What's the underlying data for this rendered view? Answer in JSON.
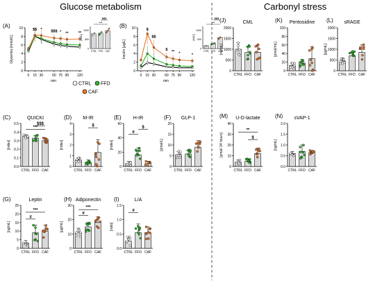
{
  "sections": {
    "left_title": "Glucose metabolism",
    "right_title": "Carbonyl stress"
  },
  "colors": {
    "CTRL": "#ffffff",
    "FFD": "#2fb52f",
    "CAF": "#e8772b",
    "axis": "#000000",
    "bar": "#d9d9d9",
    "divider": "#555555"
  },
  "legend": {
    "items": [
      {
        "group": "CTRL",
        "label": "CTRL"
      },
      {
        "group": "FFD",
        "label": "FFD"
      },
      {
        "group": "CAF",
        "label": "CAF"
      }
    ]
  },
  "chart_data": [
    {
      "id": "A",
      "type": "line",
      "panel_label": "(A)",
      "title": "",
      "ylabel": "Glycemia [mmol/L]",
      "xlabel": "min",
      "x": [
        0,
        15,
        30,
        60,
        75,
        90,
        120
      ],
      "x_tick_labels": [
        "0",
        "15",
        "30",
        "60",
        "75",
        "90",
        "120"
      ],
      "yticks": [
        0,
        2,
        4,
        6,
        8,
        10
      ],
      "ylim": [
        0,
        10
      ],
      "y_break": true,
      "series": [
        {
          "name": "CTRL",
          "values": [
            4.5,
            8.0,
            7.3,
            6.2,
            5.9,
            5.7,
            5.5
          ],
          "error": [
            0.3,
            1.2,
            1.0,
            0.6,
            0.5,
            0.5,
            0.4
          ]
        },
        {
          "name": "FFD",
          "values": [
            4.8,
            8.1,
            7.5,
            6.6,
            6.3,
            6.1,
            6.0
          ],
          "error": [
            0.3,
            1.3,
            1.1,
            0.7,
            0.6,
            0.5,
            0.5
          ]
        },
        {
          "name": "CAF",
          "values": [
            5.2,
            8.3,
            8.2,
            7.6,
            7.5,
            7.3,
            7.4
          ],
          "error": [
            0.4,
            1.5,
            1.3,
            0.9,
            0.8,
            0.7,
            0.7
          ]
        }
      ],
      "annotations": [
        "$$",
        "*",
        "$$$",
        "*",
        "**",
        "**"
      ],
      "inset": {
        "type": "bar",
        "ylabel": "[AUC]",
        "categories": [
          "CTRL",
          "FFD",
          "CAF"
        ],
        "values": [
          800,
          840,
          960
        ],
        "ylim": [
          0,
          1200
        ],
        "yticks": [
          0,
          500,
          1000
        ],
        "annotations": [
          "$$$",
          "***"
        ]
      }
    },
    {
      "id": "B",
      "type": "line",
      "panel_label": "(B)",
      "title": "",
      "ylabel": "Insulin [μg/L]",
      "xlabel": "min",
      "x": [
        0,
        15,
        30,
        60,
        75,
        90,
        120
      ],
      "x_tick_labels": [
        "0",
        "15",
        "30",
        "60",
        "75",
        "90",
        "120"
      ],
      "yticks": [
        0,
        2,
        4,
        6,
        8,
        10
      ],
      "ylim": [
        0,
        10
      ],
      "series": [
        {
          "name": "CTRL",
          "values": [
            0.7,
            1.9,
            1.6,
            0.9,
            0.8,
            0.7,
            0.7
          ],
          "error": [
            0.2,
            0.6,
            0.5,
            0.3,
            0.2,
            0.2,
            0.2
          ]
        },
        {
          "name": "FFD",
          "values": [
            1.2,
            4.0,
            2.8,
            1.5,
            1.3,
            1.1,
            1.0
          ],
          "error": [
            0.4,
            1.8,
            1.2,
            0.6,
            0.5,
            0.4,
            0.4
          ]
        },
        {
          "name": "CAF",
          "values": [
            2.5,
            8.6,
            5.4,
            3.2,
            2.8,
            2.5,
            2.3
          ],
          "error": [
            0.6,
            2.5,
            1.8,
            1.0,
            0.9,
            0.8,
            0.7
          ]
        }
      ],
      "annotations": [
        "$",
        "$$",
        "$",
        "**",
        "*",
        "*"
      ],
      "inset": {
        "type": "bar",
        "ylabel": "[AUC]",
        "categories": [
          "CTRL",
          "FFD",
          "CAF"
        ],
        "values": [
          150,
          260,
          600
        ],
        "ylim": [
          0,
          1200
        ],
        "yticks": [
          0,
          500,
          1000
        ],
        "annotations": [
          "$$$",
          "***"
        ]
      }
    },
    {
      "id": "C",
      "type": "bar",
      "panel_label": "(C)",
      "title": "QUICKI",
      "ylabel": "[index]",
      "categories": [
        "CTRL",
        "FFD",
        "CAF"
      ],
      "values": [
        0.35,
        0.33,
        0.3
      ],
      "error": [
        0.02,
        0.03,
        0.03
      ],
      "ylim": [
        0,
        0.5
      ],
      "yticks": [
        0.0,
        0.1,
        0.2,
        0.3,
        0.4,
        0.5
      ],
      "ytick_labels": [
        "0.0",
        "0.1",
        "0.2",
        "0.3",
        "0.4",
        "0.5"
      ],
      "sig": [
        {
          "from": 0,
          "to": 2,
          "label": "***",
          "y": 0.43
        },
        {
          "from": 1,
          "to": 2,
          "label": "$$$",
          "y": 0.47
        }
      ]
    },
    {
      "id": "D",
      "type": "bar",
      "panel_label": "(D)",
      "title": "M-IR",
      "ylabel": "[index]",
      "categories": [
        "CTRL",
        "FFD",
        "CAF"
      ],
      "values": [
        0.6,
        0.4,
        1.3
      ],
      "error": [
        0.2,
        0.2,
        1.2
      ],
      "ylim": [
        0,
        4
      ],
      "yticks": [
        0,
        1,
        2,
        3,
        4
      ],
      "ytick_labels": [
        "0",
        "1",
        "2",
        "3",
        "4"
      ],
      "sig": [
        {
          "from": 1,
          "to": 2,
          "label": "$",
          "y": 3.6
        }
      ]
    },
    {
      "id": "E",
      "type": "bar",
      "panel_label": "(E)",
      "title": "H-IR",
      "ylabel": "[index]",
      "categories": [
        "CTRL",
        "FFD",
        "CAF"
      ],
      "values": [
        4,
        16,
        4
      ],
      "error": [
        3,
        10,
        3
      ],
      "ylim": [
        0,
        60
      ],
      "yticks": [
        0,
        20,
        40,
        60
      ],
      "ytick_labels": [
        "0",
        "20",
        "40",
        "60"
      ],
      "sig": [
        {
          "from": 0,
          "to": 1,
          "label": "#",
          "y": 45
        },
        {
          "from": 1,
          "to": 2,
          "label": "$",
          "y": 52
        }
      ]
    },
    {
      "id": "F",
      "type": "bar",
      "panel_label": "(F)",
      "title": "GLP-1",
      "ylabel": "[pmol/L]",
      "categories": [
        "CTRL",
        "FFD",
        "CAF"
      ],
      "values": [
        5.5,
        5.8,
        9.0
      ],
      "error": [
        1.5,
        1.8,
        3.0
      ],
      "ylim": [
        0,
        20
      ],
      "yticks": [
        0,
        5,
        10,
        15,
        20
      ],
      "ytick_labels": [
        "0",
        "5",
        "10",
        "15",
        "20"
      ],
      "sig": []
    },
    {
      "id": "G",
      "type": "bar",
      "panel_label": "(G)",
      "title": "Leptin",
      "ylabel": "[ng/mL]",
      "categories": [
        "CTRL",
        "FFD",
        "CAF"
      ],
      "values": [
        3,
        9,
        10
      ],
      "error": [
        1.5,
        4.5,
        3.5
      ],
      "ylim": [
        0,
        25
      ],
      "yticks": [
        0,
        5,
        10,
        15,
        20,
        25
      ],
      "ytick_labels": [
        "0",
        "5",
        "10",
        "15",
        "20",
        "25"
      ],
      "sig": [
        {
          "from": 0,
          "to": 1,
          "label": "#",
          "y": 17
        },
        {
          "from": 0,
          "to": 2,
          "label": "***",
          "y": 21
        }
      ]
    },
    {
      "id": "H",
      "type": "bar",
      "panel_label": "(H)",
      "title": "Adiponectin",
      "ylabel": "[μg/mL]",
      "categories": [
        "CTRL",
        "FFD",
        "CAF"
      ],
      "values": [
        11,
        15,
        18
      ],
      "error": [
        3,
        3,
        4
      ],
      "ylim": [
        0,
        30
      ],
      "yticks": [
        0,
        10,
        20,
        30
      ],
      "ytick_labels": [
        "0",
        "10",
        "20",
        "30"
      ],
      "sig": [
        {
          "from": 0,
          "to": 1,
          "label": "#",
          "y": 23
        },
        {
          "from": 0,
          "to": 2,
          "label": "***",
          "y": 27
        }
      ]
    },
    {
      "id": "I",
      "type": "bar",
      "panel_label": "(I)",
      "title": "L/A",
      "ylabel": "[ratio]",
      "categories": [
        "CTRL",
        "FFD",
        "CAF"
      ],
      "values": [
        0.25,
        0.55,
        0.55
      ],
      "error": [
        0.15,
        0.3,
        0.2
      ],
      "ylim": [
        0,
        1.5
      ],
      "yticks": [
        0.0,
        0.5,
        1.0,
        1.5
      ],
      "ytick_labels": [
        "0.0",
        "0.5",
        "1.0",
        "1.5"
      ],
      "sig": [
        {
          "from": 0,
          "to": 1,
          "label": "#",
          "y": 1.25
        }
      ]
    },
    {
      "id": "J",
      "type": "bar",
      "panel_label": "(J)",
      "title": "CML",
      "ylabel": "[ng/mL]",
      "categories": [
        "CTRL",
        "FFD",
        "CAF"
      ],
      "values": [
        1000,
        850,
        850
      ],
      "error": [
        300,
        300,
        350
      ],
      "ylim": [
        0,
        2000
      ],
      "yticks": [
        0,
        500,
        1000,
        1500,
        2000
      ],
      "ytick_labels": [
        "0",
        "500",
        "1000",
        "1500",
        "2000"
      ],
      "sig": []
    },
    {
      "id": "K",
      "type": "bar",
      "panel_label": "(K)",
      "title": "Pentosidine",
      "ylabel": "[pmol/mL]",
      "categories": [
        "CTRL",
        "FFD",
        "CAF"
      ],
      "values": [
        12,
        18,
        28
      ],
      "error": [
        6,
        8,
        28
      ],
      "ylim": [
        0,
        100
      ],
      "yticks": [
        0,
        20,
        40,
        60,
        80,
        100
      ],
      "ytick_labels": [
        "0",
        "20",
        "40",
        "60",
        "80",
        "100"
      ],
      "sig": []
    },
    {
      "id": "L",
      "type": "bar",
      "panel_label": "(L)",
      "title": "sRAGE",
      "ylabel": "[pg/mL]",
      "categories": [
        "CTRL",
        "FFD",
        "CAF"
      ],
      "values": [
        450,
        700,
        850
      ],
      "error": [
        150,
        200,
        350
      ],
      "ylim": [
        0,
        2000
      ],
      "yticks": [
        0,
        500,
        1000,
        1500,
        2000
      ],
      "ytick_labels": [
        "0",
        "500",
        "1000",
        "1500",
        "2000"
      ],
      "sig": []
    },
    {
      "id": "M",
      "type": "bar",
      "panel_label": "(M)",
      "title": "U-D-lactate",
      "ylabel": "[pmol/ 24 hours]",
      "categories": [
        "CTRL",
        "FFD",
        "CAF"
      ],
      "values": [
        4,
        5,
        12
      ],
      "error": [
        2,
        2,
        5
      ],
      "ylim": [
        0,
        40
      ],
      "yticks": [
        0,
        10,
        20,
        30,
        40
      ],
      "ytick_labels": [
        "0",
        "10",
        "20",
        "30",
        "40"
      ],
      "sig": [
        {
          "from": 0,
          "to": 2,
          "label": "**",
          "y": 32
        },
        {
          "from": 1,
          "to": 2,
          "label": "$",
          "y": 25
        }
      ]
    },
    {
      "id": "N",
      "type": "bar",
      "panel_label": "(N)",
      "title": "sVAP-1",
      "ylabel": "[ng/mL]",
      "categories": [
        "CTRL",
        "FFD",
        "CAF"
      ],
      "values": [
        0.6,
        0.7,
        0.65
      ],
      "error": [
        0.1,
        0.3,
        0.1
      ],
      "ylim": [
        0,
        2.0
      ],
      "yticks": [
        0.0,
        0.5,
        1.0,
        1.5,
        2.0
      ],
      "ytick_labels": [
        "0.0",
        "0.5",
        "1.0",
        "1.5",
        "2.0"
      ],
      "sig": []
    }
  ]
}
